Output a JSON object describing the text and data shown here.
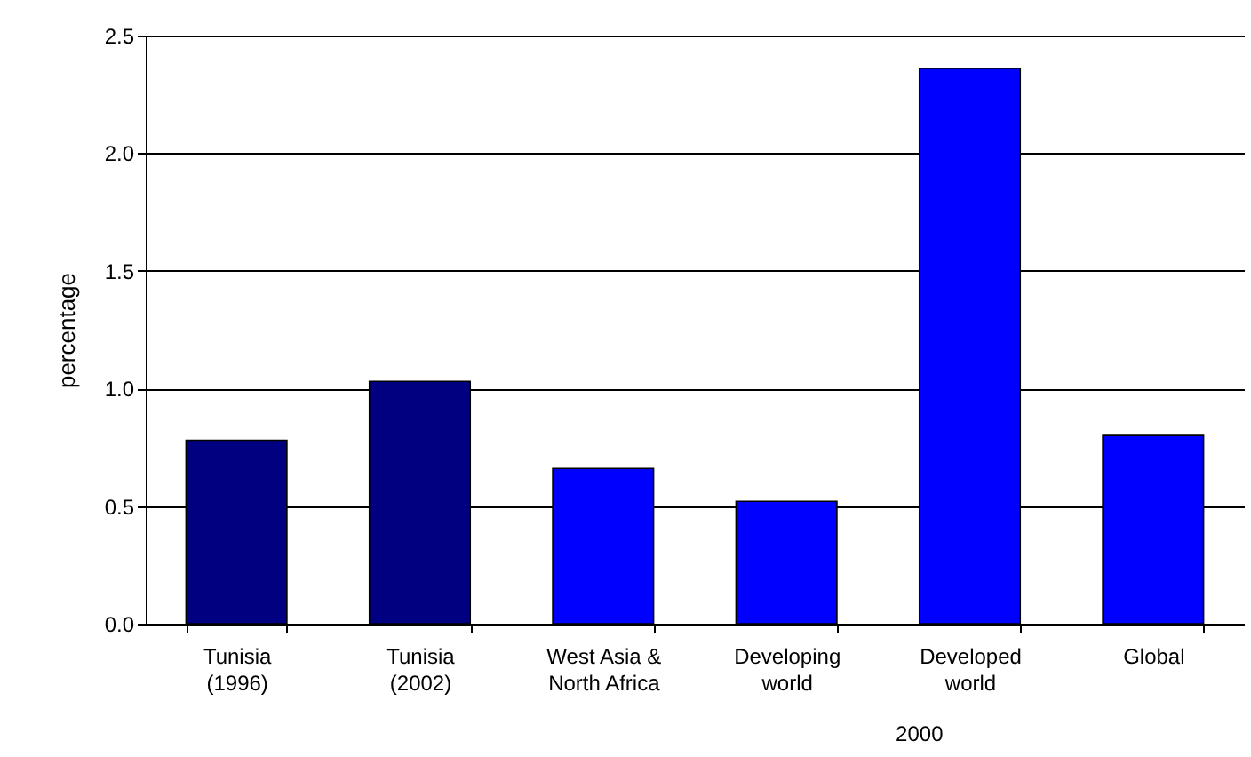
{
  "chart_data": {
    "type": "bar",
    "ylabel": "percentage",
    "categories": [
      "Tunisia\n(1996)",
      "Tunisia\n(2002)",
      "West Asia &\nNorth Africa",
      "Developing\nworld",
      "Developed\nworld",
      "Global"
    ],
    "values": [
      0.78,
      1.03,
      0.66,
      0.52,
      2.36,
      0.8
    ],
    "colors": [
      "#000080",
      "#000080",
      "#0000ff",
      "#0000ff",
      "#0000ff",
      "#0000ff"
    ],
    "ylim": [
      0,
      2.5
    ],
    "yticks": [
      {
        "value": 0,
        "label": "0.0"
      },
      {
        "value": 0.5,
        "label": "0.5"
      },
      {
        "value": 1,
        "label": "1.0"
      },
      {
        "value": 1.5,
        "label": "1.5"
      },
      {
        "value": 2,
        "label": "2.0"
      },
      {
        "value": 2.5,
        "label": "2.5"
      }
    ],
    "grid": "y",
    "annotations": [
      "2000"
    ]
  }
}
